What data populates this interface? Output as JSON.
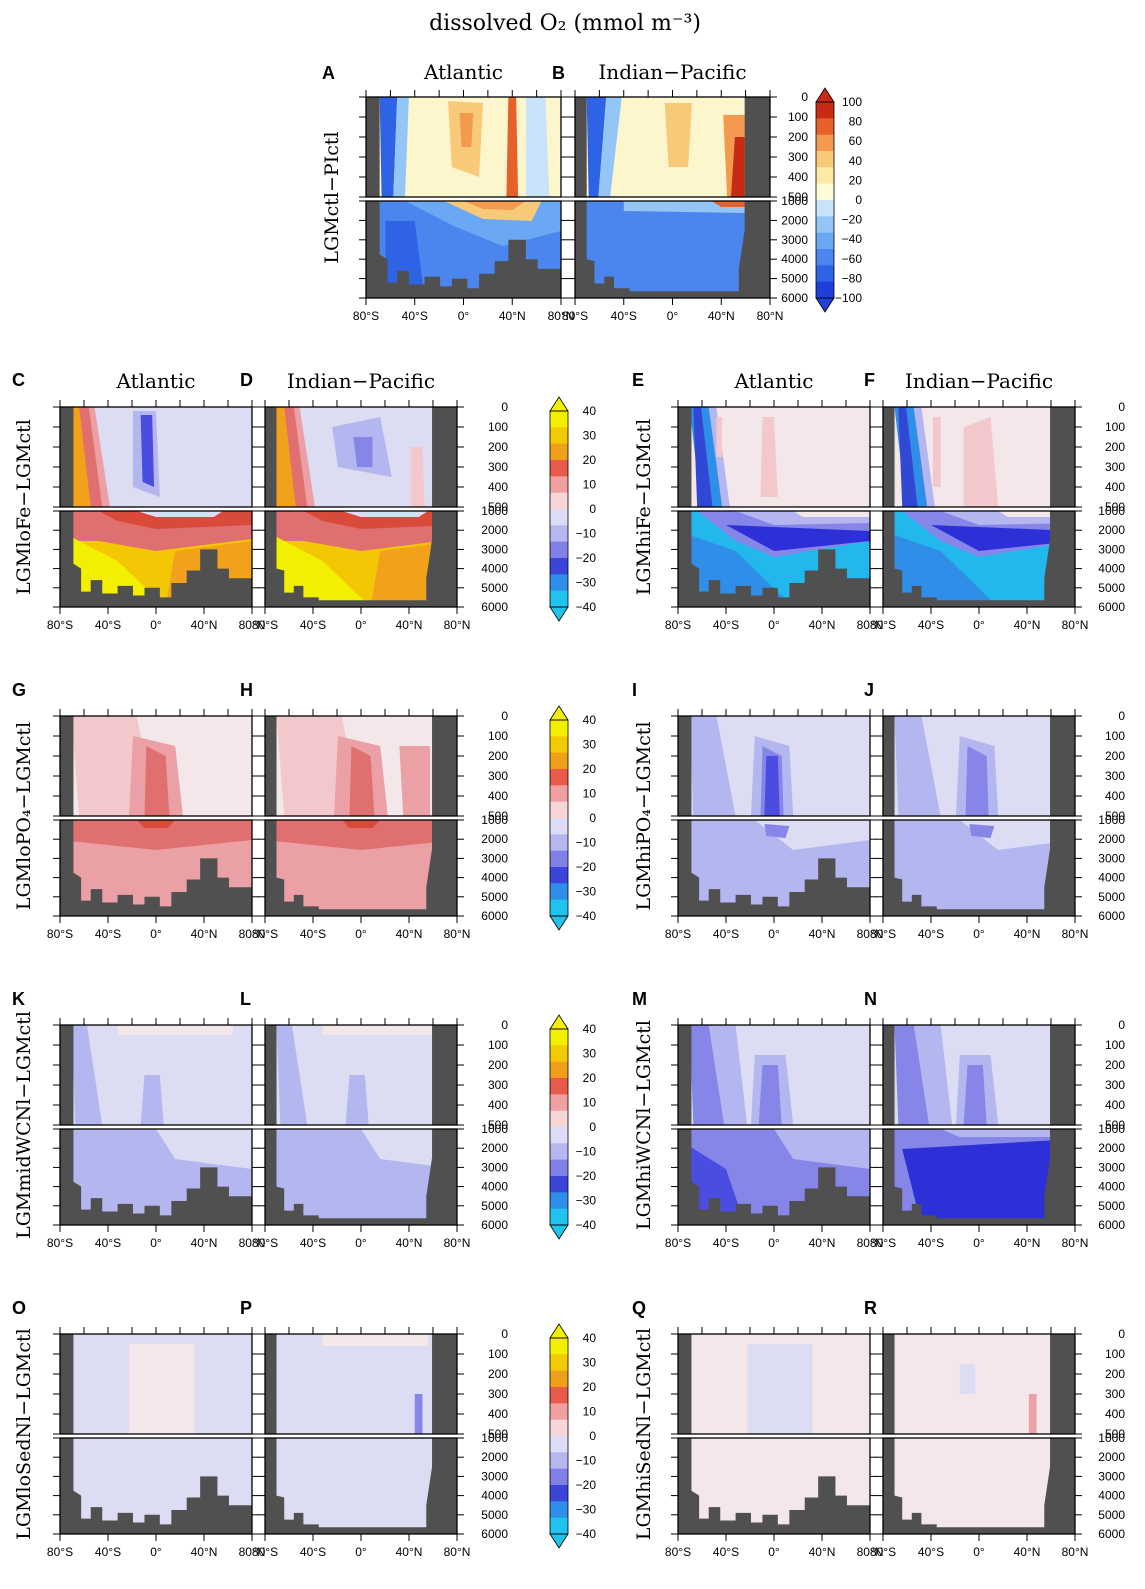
{
  "figure": {
    "title": "dissolved O₂ (mmol m⁻³)"
  },
  "chart_data": [
    {
      "type": "heatmap",
      "panels": [
        "A",
        "B"
      ],
      "row_label": "LGMctl−PIctl",
      "basin_titles": [
        "Atlantic",
        "Indian−Pacific"
      ],
      "x_ticks": [
        "80°S",
        "40°S",
        "0°",
        "40°N",
        "80°N"
      ],
      "depth_ticks_upper": [
        "0",
        "100",
        "200",
        "300",
        "400",
        "500"
      ],
      "depth_ticks_lower": [
        "1000",
        "2000",
        "3000",
        "4000",
        "5000",
        "6000"
      ],
      "colorbar": [
        "100",
        "80",
        "60",
        "40",
        "20",
        "0",
        "−20",
        "−40",
        "−60",
        "−80",
        "−100"
      ]
    },
    {
      "type": "heatmap",
      "panels": [
        "C",
        "D"
      ],
      "row_label": "LGMloFe−LGMctl",
      "basin_titles": [
        "Atlantic",
        "Indian−Pacific"
      ],
      "colorbar": [
        "40",
        "30",
        "20",
        "10",
        "0",
        "−10",
        "−20",
        "−30",
        "−40"
      ]
    },
    {
      "type": "heatmap",
      "panels": [
        "E",
        "F"
      ],
      "row_label": "LGMhiFe−LGMctl",
      "basin_titles": [
        "Atlantic",
        "Indian−Pacific"
      ]
    },
    {
      "type": "heatmap",
      "panels": [
        "G",
        "H"
      ],
      "row_label": "LGMloPO₄−LGMctl",
      "colorbar": [
        "40",
        "30",
        "20",
        "10",
        "0",
        "−10",
        "−20",
        "−30",
        "−40"
      ]
    },
    {
      "type": "heatmap",
      "panels": [
        "I",
        "J"
      ],
      "row_label": "LGMhiPO₄−LGMctl"
    },
    {
      "type": "heatmap",
      "panels": [
        "K",
        "L"
      ],
      "row_label": "LGMmidWCNl−LGMctl",
      "colorbar": [
        "40",
        "30",
        "20",
        "10",
        "0",
        "−10",
        "−20",
        "−30",
        "−40"
      ]
    },
    {
      "type": "heatmap",
      "panels": [
        "M",
        "N"
      ],
      "row_label": "LGMhiWCNl−LGMctl"
    },
    {
      "type": "heatmap",
      "panels": [
        "O",
        "P"
      ],
      "row_label": "LGMloSedNl−LGMctl",
      "colorbar": [
        "40",
        "30",
        "20",
        "10",
        "0",
        "−10",
        "−20",
        "−30",
        "−40"
      ]
    },
    {
      "type": "heatmap",
      "panels": [
        "Q",
        "R"
      ],
      "row_label": "LGMhiSedNl−LGMctl"
    }
  ]
}
